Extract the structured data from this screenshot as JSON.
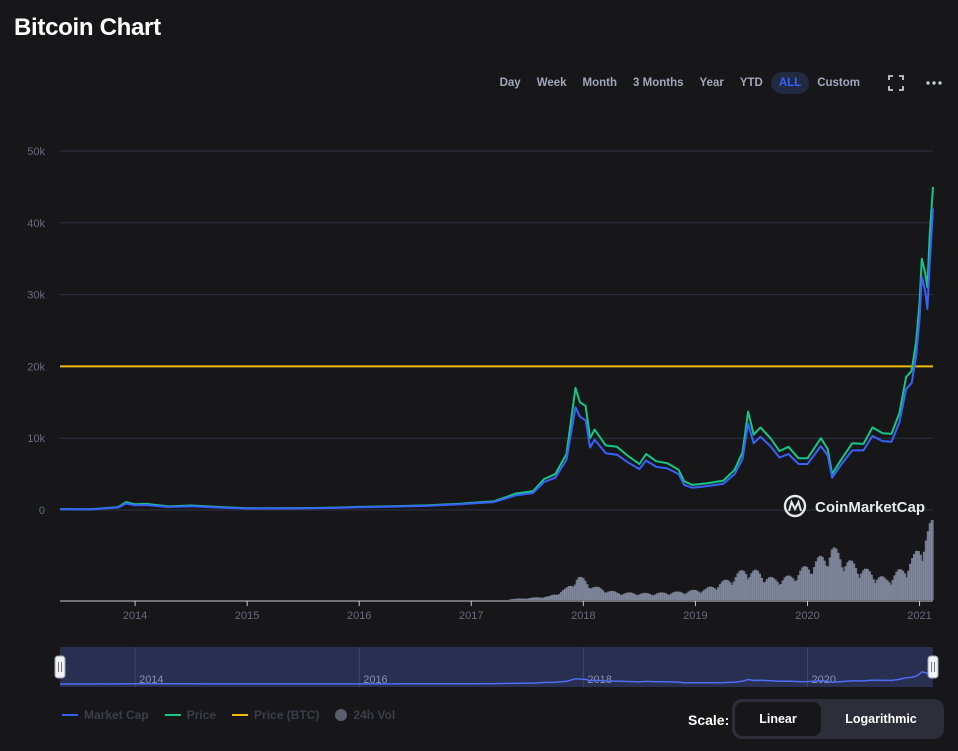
{
  "page_title": "Bitcoin Chart",
  "ranges": [
    "Day",
    "Week",
    "Month",
    "3 Months",
    "Year",
    "YTD",
    "ALL",
    "Custom"
  ],
  "active_range": "ALL",
  "watermark": "CoinMarketCap",
  "legend": {
    "market_cap": "Market Cap",
    "price": "Price",
    "price_btc": "Price (BTC)",
    "vol": "24h Vol"
  },
  "scale": {
    "label": "Scale:",
    "linear": "Linear",
    "log": "Logarithmic",
    "active": "Linear"
  },
  "colors": {
    "background": "#17171a",
    "market_cap": "#3861fb",
    "price": "#16c784",
    "price_btc": "#f0b90b",
    "volume": "#858ca2",
    "active_tab": "#3861fb"
  },
  "icons": {
    "fullscreen": "fullscreen-icon",
    "more": "more-icon",
    "logo": "coinmarketcap-logo"
  },
  "chart_data": {
    "type": "line",
    "y_ticks": [
      "50k",
      "40k",
      "30k",
      "20k",
      "10k",
      "0"
    ],
    "y_tick_values": [
      50000,
      40000,
      30000,
      20000,
      10000,
      0
    ],
    "ylim": [
      0,
      50000
    ],
    "x_ticks": [
      "2014",
      "2015",
      "2016",
      "2017",
      "2018",
      "2019",
      "2020",
      "2021"
    ],
    "x_tick_years": [
      2014,
      2015,
      2016,
      2017,
      2018,
      2019,
      2020,
      2021
    ],
    "xlim": [
      2013.33,
      2021.12
    ],
    "grid": true,
    "navigator_ticks": [
      "2014",
      "2016",
      "2018",
      "2020"
    ],
    "navigator_tick_years": [
      2014,
      2016,
      2018,
      2020
    ],
    "price_btc_level": 20000,
    "series": [
      {
        "name": "Price",
        "points": [
          [
            2013.33,
            130
          ],
          [
            2013.6,
            110
          ],
          [
            2013.85,
            400
          ],
          [
            2013.92,
            1100
          ],
          [
            2014.0,
            800
          ],
          [
            2014.1,
            850
          ],
          [
            2014.3,
            500
          ],
          [
            2014.5,
            630
          ],
          [
            2014.8,
            380
          ],
          [
            2015.0,
            250
          ],
          [
            2015.5,
            260
          ],
          [
            2015.8,
            330
          ],
          [
            2016.0,
            430
          ],
          [
            2016.4,
            560
          ],
          [
            2016.6,
            640
          ],
          [
            2016.9,
            880
          ],
          [
            2017.0,
            990
          ],
          [
            2017.2,
            1200
          ],
          [
            2017.4,
            2300
          ],
          [
            2017.55,
            2600
          ],
          [
            2017.65,
            4300
          ],
          [
            2017.75,
            5000
          ],
          [
            2017.85,
            7800
          ],
          [
            2017.93,
            17000
          ],
          [
            2017.97,
            15000
          ],
          [
            2018.02,
            14500
          ],
          [
            2018.06,
            10000
          ],
          [
            2018.1,
            11200
          ],
          [
            2018.2,
            9000
          ],
          [
            2018.3,
            8800
          ],
          [
            2018.4,
            7500
          ],
          [
            2018.5,
            6400
          ],
          [
            2018.56,
            7800
          ],
          [
            2018.65,
            6800
          ],
          [
            2018.75,
            6500
          ],
          [
            2018.85,
            5600
          ],
          [
            2018.9,
            4000
          ],
          [
            2018.97,
            3500
          ],
          [
            2019.1,
            3700
          ],
          [
            2019.25,
            4100
          ],
          [
            2019.35,
            5600
          ],
          [
            2019.42,
            8000
          ],
          [
            2019.47,
            13700
          ],
          [
            2019.52,
            10500
          ],
          [
            2019.58,
            11500
          ],
          [
            2019.67,
            10000
          ],
          [
            2019.75,
            8200
          ],
          [
            2019.83,
            8800
          ],
          [
            2019.92,
            7200
          ],
          [
            2020.0,
            7200
          ],
          [
            2020.12,
            10000
          ],
          [
            2020.18,
            8500
          ],
          [
            2020.22,
            5000
          ],
          [
            2020.3,
            7000
          ],
          [
            2020.4,
            9300
          ],
          [
            2020.5,
            9200
          ],
          [
            2020.58,
            11500
          ],
          [
            2020.67,
            10700
          ],
          [
            2020.75,
            10600
          ],
          [
            2020.82,
            13500
          ],
          [
            2020.88,
            18500
          ],
          [
            2020.93,
            19400
          ],
          [
            2020.97,
            23500
          ],
          [
            2021.0,
            29000
          ],
          [
            2021.02,
            35000
          ],
          [
            2021.05,
            33000
          ],
          [
            2021.07,
            31000
          ],
          [
            2021.09,
            38000
          ],
          [
            2021.12,
            45000
          ]
        ]
      },
      {
        "name": "Market Cap",
        "points": [
          [
            2013.33,
            100
          ],
          [
            2013.6,
            90
          ],
          [
            2013.85,
            350
          ],
          [
            2013.92,
            900
          ],
          [
            2014.0,
            650
          ],
          [
            2014.1,
            700
          ],
          [
            2014.3,
            420
          ],
          [
            2014.5,
            520
          ],
          [
            2014.8,
            320
          ],
          [
            2015.0,
            210
          ],
          [
            2015.5,
            220
          ],
          [
            2015.8,
            290
          ],
          [
            2016.0,
            380
          ],
          [
            2016.4,
            500
          ],
          [
            2016.6,
            570
          ],
          [
            2016.9,
            800
          ],
          [
            2017.0,
            900
          ],
          [
            2017.2,
            1100
          ],
          [
            2017.4,
            2050
          ],
          [
            2017.55,
            2350
          ],
          [
            2017.65,
            3900
          ],
          [
            2017.75,
            4500
          ],
          [
            2017.85,
            7000
          ],
          [
            2017.93,
            14300
          ],
          [
            2017.97,
            13000
          ],
          [
            2018.02,
            12500
          ],
          [
            2018.06,
            8700
          ],
          [
            2018.1,
            9800
          ],
          [
            2018.2,
            7900
          ],
          [
            2018.3,
            7700
          ],
          [
            2018.4,
            6600
          ],
          [
            2018.5,
            5700
          ],
          [
            2018.56,
            6900
          ],
          [
            2018.65,
            6000
          ],
          [
            2018.75,
            5800
          ],
          [
            2018.85,
            5000
          ],
          [
            2018.9,
            3500
          ],
          [
            2018.97,
            3100
          ],
          [
            2019.1,
            3300
          ],
          [
            2019.25,
            3650
          ],
          [
            2019.35,
            5000
          ],
          [
            2019.42,
            7100
          ],
          [
            2019.47,
            12000
          ],
          [
            2019.52,
            9300
          ],
          [
            2019.58,
            10200
          ],
          [
            2019.67,
            8900
          ],
          [
            2019.75,
            7300
          ],
          [
            2019.83,
            7800
          ],
          [
            2019.92,
            6400
          ],
          [
            2020.0,
            6400
          ],
          [
            2020.12,
            8900
          ],
          [
            2020.18,
            7600
          ],
          [
            2020.22,
            4500
          ],
          [
            2020.3,
            6300
          ],
          [
            2020.4,
            8300
          ],
          [
            2020.5,
            8300
          ],
          [
            2020.58,
            10300
          ],
          [
            2020.67,
            9600
          ],
          [
            2020.75,
            9500
          ],
          [
            2020.82,
            12200
          ],
          [
            2020.88,
            16800
          ],
          [
            2020.93,
            17700
          ],
          [
            2020.97,
            21500
          ],
          [
            2021.0,
            26700
          ],
          [
            2021.02,
            32500
          ],
          [
            2021.05,
            30500
          ],
          [
            2021.07,
            28000
          ],
          [
            2021.09,
            34000
          ],
          [
            2021.12,
            42000
          ]
        ]
      }
    ],
    "volume_relative": [
      [
        2017.35,
        0.01
      ],
      [
        2017.5,
        0.02
      ],
      [
        2017.7,
        0.04
      ],
      [
        2017.85,
        0.12
      ],
      [
        2017.95,
        0.25
      ],
      [
        2018.0,
        0.22
      ],
      [
        2018.1,
        0.14
      ],
      [
        2018.3,
        0.08
      ],
      [
        2018.6,
        0.07
      ],
      [
        2018.9,
        0.09
      ],
      [
        2019.1,
        0.12
      ],
      [
        2019.3,
        0.22
      ],
      [
        2019.45,
        0.33
      ],
      [
        2019.55,
        0.3
      ],
      [
        2019.7,
        0.22
      ],
      [
        2019.85,
        0.25
      ],
      [
        2020.0,
        0.36
      ],
      [
        2020.15,
        0.47
      ],
      [
        2020.22,
        0.55
      ],
      [
        2020.35,
        0.42
      ],
      [
        2020.5,
        0.33
      ],
      [
        2020.7,
        0.22
      ],
      [
        2020.85,
        0.33
      ],
      [
        2020.95,
        0.45
      ],
      [
        2021.02,
        0.62
      ],
      [
        2021.08,
        0.72
      ],
      [
        2021.12,
        0.85
      ]
    ]
  }
}
